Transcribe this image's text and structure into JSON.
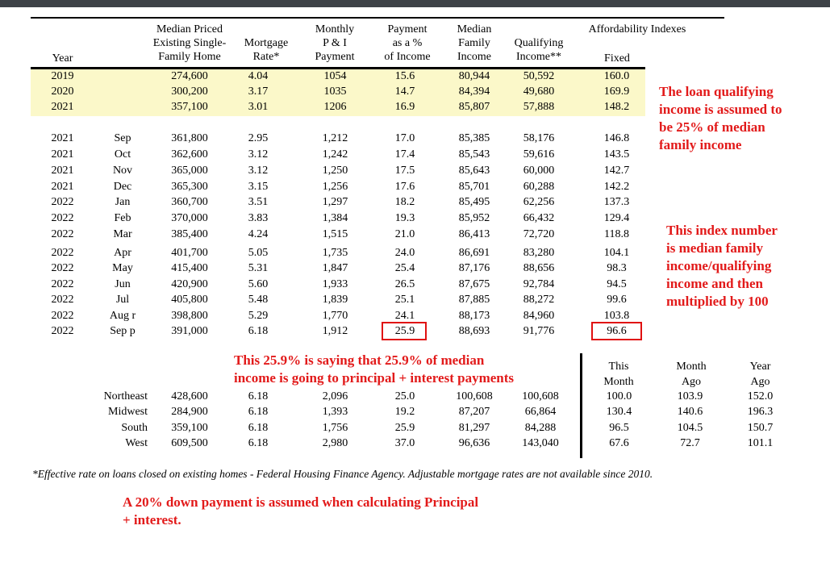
{
  "headers": {
    "year": "Year",
    "median_price": [
      "Median Priced",
      "Existing Single-",
      "Family Home"
    ],
    "mortgage_rate": [
      "Mortgage",
      "Rate*"
    ],
    "monthly_pi": [
      "Monthly",
      "P & I",
      "Payment"
    ],
    "payment_pct": [
      "Payment",
      "as a %",
      "of Income"
    ],
    "median_income": [
      "Median",
      "Family",
      "Income"
    ],
    "qualifying": [
      "Qualifying",
      "Income**"
    ],
    "affordability": "Affordability Indexes",
    "fixed": "Fixed"
  },
  "annual_rows": [
    {
      "year": "2019",
      "month": "",
      "price": "274,600",
      "rate": "4.04",
      "payment": "1054",
      "pct": "15.6",
      "income": "80,944",
      "qual": "50,592",
      "index": "160.0"
    },
    {
      "year": "2020",
      "month": "",
      "price": "300,200",
      "rate": "3.17",
      "payment": "1035",
      "pct": "14.7",
      "income": "84,394",
      "qual": "49,680",
      "index": "169.9"
    },
    {
      "year": "2021",
      "month": "",
      "price": "357,100",
      "rate": "3.01",
      "payment": "1206",
      "pct": "16.9",
      "income": "85,807",
      "qual": "57,888",
      "index": "148.2"
    }
  ],
  "monthly_rows": [
    {
      "year": "2021",
      "month": "Sep",
      "price": "361,800",
      "rate": "2.95",
      "payment": "1,212",
      "pct": "17.0",
      "income": "85,385",
      "qual": "58,176",
      "index": "146.8"
    },
    {
      "year": "2021",
      "month": "Oct",
      "price": "362,600",
      "rate": "3.12",
      "payment": "1,242",
      "pct": "17.4",
      "income": "85,543",
      "qual": "59,616",
      "index": "143.5"
    },
    {
      "year": "2021",
      "month": "Nov",
      "price": "365,000",
      "rate": "3.12",
      "payment": "1,250",
      "pct": "17.5",
      "income": "85,643",
      "qual": "60,000",
      "index": "142.7"
    },
    {
      "year": "2021",
      "month": "Dec",
      "price": "365,300",
      "rate": "3.15",
      "payment": "1,256",
      "pct": "17.6",
      "income": "85,701",
      "qual": "60,288",
      "index": "142.2"
    },
    {
      "year": "2022",
      "month": "Jan",
      "price": "360,700",
      "rate": "3.51",
      "payment": "1,297",
      "pct": "18.2",
      "income": "85,495",
      "qual": "62,256",
      "index": "137.3"
    },
    {
      "year": "2022",
      "month": "Feb",
      "price": "370,000",
      "rate": "3.83",
      "payment": "1,384",
      "pct": "19.3",
      "income": "85,952",
      "qual": "66,432",
      "index": "129.4"
    },
    {
      "year": "2022",
      "month": "Mar",
      "price": "385,400",
      "rate": "4.24",
      "payment": "1,515",
      "pct": "21.0",
      "income": "86,413",
      "qual": "72,720",
      "index": "118.8"
    },
    {
      "year": "2022",
      "month": "Apr",
      "price": "401,700",
      "rate": "5.05",
      "payment": "1,735",
      "pct": "24.0",
      "income": "86,691",
      "qual": "83,280",
      "index": "104.1"
    },
    {
      "year": "2022",
      "month": "May",
      "price": "415,400",
      "rate": "5.31",
      "payment": "1,847",
      "pct": "25.4",
      "income": "87,176",
      "qual": "88,656",
      "index": "98.3"
    },
    {
      "year": "2022",
      "month": "Jun",
      "price": "420,900",
      "rate": "5.60",
      "payment": "1,933",
      "pct": "26.5",
      "income": "87,675",
      "qual": "92,784",
      "index": "94.5"
    },
    {
      "year": "2022",
      "month": "Jul",
      "price": "405,800",
      "rate": "5.48",
      "payment": "1,839",
      "pct": "25.1",
      "income": "87,885",
      "qual": "88,272",
      "index": "99.6"
    },
    {
      "year": "2022",
      "month": "Aug r",
      "price": "398,800",
      "rate": "5.29",
      "payment": "1,770",
      "pct": "24.1",
      "income": "88,173",
      "qual": "84,960",
      "index": "103.8"
    },
    {
      "year": "2022",
      "month": "Sep p",
      "price": "391,000",
      "rate": "6.18",
      "payment": "1,912",
      "pct": "25.9",
      "income": "88,693",
      "qual": "91,776",
      "index": "96.6"
    }
  ],
  "regional_headers": {
    "this_month": [
      "This",
      "Month"
    ],
    "month_ago": [
      "Month",
      "Ago"
    ],
    "year_ago": [
      "Year",
      "Ago"
    ]
  },
  "regional_rows": [
    {
      "region": "Northeast",
      "price": "428,600",
      "rate": "6.18",
      "payment": "2,096",
      "pct": "25.0",
      "income": "100,608",
      "qual": "100,608",
      "this_month": "100.0",
      "month_ago": "103.9",
      "year_ago": "152.0"
    },
    {
      "region": "Midwest",
      "price": "284,900",
      "rate": "6.18",
      "payment": "1,393",
      "pct": "19.2",
      "income": "87,207",
      "qual": "66,864",
      "this_month": "130.4",
      "month_ago": "140.6",
      "year_ago": "196.3"
    },
    {
      "region": "South",
      "price": "359,100",
      "rate": "6.18",
      "payment": "1,756",
      "pct": "25.9",
      "income": "81,297",
      "qual": "84,288",
      "this_month": "96.5",
      "month_ago": "104.5",
      "year_ago": "150.7"
    },
    {
      "region": "West",
      "price": "609,500",
      "rate": "6.18",
      "payment": "2,980",
      "pct": "37.0",
      "income": "96,636",
      "qual": "143,040",
      "this_month": "67.6",
      "month_ago": "72.7",
      "year_ago": "101.1"
    }
  ],
  "annotations": {
    "loan_note": [
      "The loan qualifying",
      "income is assumed to",
      "be 25% of median",
      "family income"
    ],
    "index_note": [
      "This index number",
      "is median family",
      "income/qualifying",
      "income and then",
      "multiplied by 100"
    ],
    "payment_note": [
      "This 25.9% is saying that 25.9% of median",
      "income is going to principal + interest payments"
    ],
    "down_payment_note": [
      "A 20% down payment is assumed when calculating Principal",
      "+ interest."
    ]
  },
  "footnote": "*Effective rate on loans closed on existing homes - Federal Housing Finance Agency.  Adjustable mortgage rates are not available since 2010.",
  "colors": {
    "annotation_red": "#e21a1a",
    "highlight_yellow": "#fbf8c9",
    "top_bar": "#3d4247"
  }
}
